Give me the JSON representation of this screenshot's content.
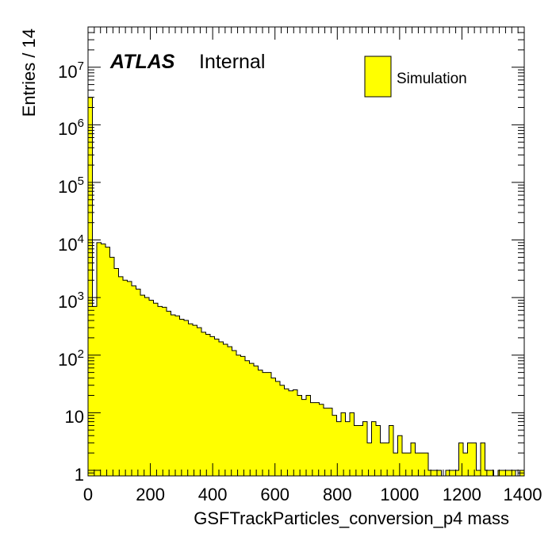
{
  "chart_data": {
    "type": "bar",
    "xlabel": "GSFTrackParticles_conversion_p4 mass",
    "ylabel": "Entries / 14",
    "xlim": [
      0,
      1400
    ],
    "ylim": [
      0.8,
      50000000
    ],
    "y_scale": "log",
    "grid": false,
    "bin_width": 14,
    "fill_color": "#ffff00",
    "line_color": "#000000",
    "x_ticks": [
      "0",
      "200",
      "400",
      "600",
      "800",
      "1000",
      "1200",
      "1400"
    ],
    "y_ticks": [
      {
        "base": "1",
        "exp": ""
      },
      {
        "base": "10",
        "exp": ""
      },
      {
        "base": "10",
        "exp": "2"
      },
      {
        "base": "10",
        "exp": "3"
      },
      {
        "base": "10",
        "exp": "4"
      },
      {
        "base": "10",
        "exp": "5"
      },
      {
        "base": "10",
        "exp": "6"
      },
      {
        "base": "10",
        "exp": "7"
      }
    ],
    "atlas_label": "ATLAS",
    "atlas_status": "Internal",
    "legend_position": "top-right",
    "series": [
      {
        "name": "Simulation",
        "values": [
          3000000,
          700,
          9000,
          8500,
          7500,
          5000,
          3200,
          2300,
          2000,
          1900,
          1600,
          1400,
          1100,
          1000,
          900,
          800,
          700,
          680,
          580,
          500,
          480,
          420,
          400,
          350,
          330,
          300,
          250,
          230,
          210,
          190,
          170,
          155,
          140,
          120,
          100,
          95,
          80,
          72,
          65,
          55,
          50,
          50,
          40,
          35,
          30,
          26,
          24,
          25,
          20,
          17,
          20,
          15,
          15,
          14,
          12,
          12,
          9,
          7,
          10,
          7,
          10,
          6,
          6,
          7,
          3,
          7,
          6,
          3,
          3,
          6,
          2,
          4,
          2,
          2,
          3,
          2,
          2,
          2,
          1,
          1,
          1,
          0,
          1,
          1,
          1,
          3,
          2,
          3,
          3,
          1,
          3,
          1,
          1,
          0,
          1,
          1,
          1,
          1,
          0,
          1
        ]
      }
    ]
  }
}
